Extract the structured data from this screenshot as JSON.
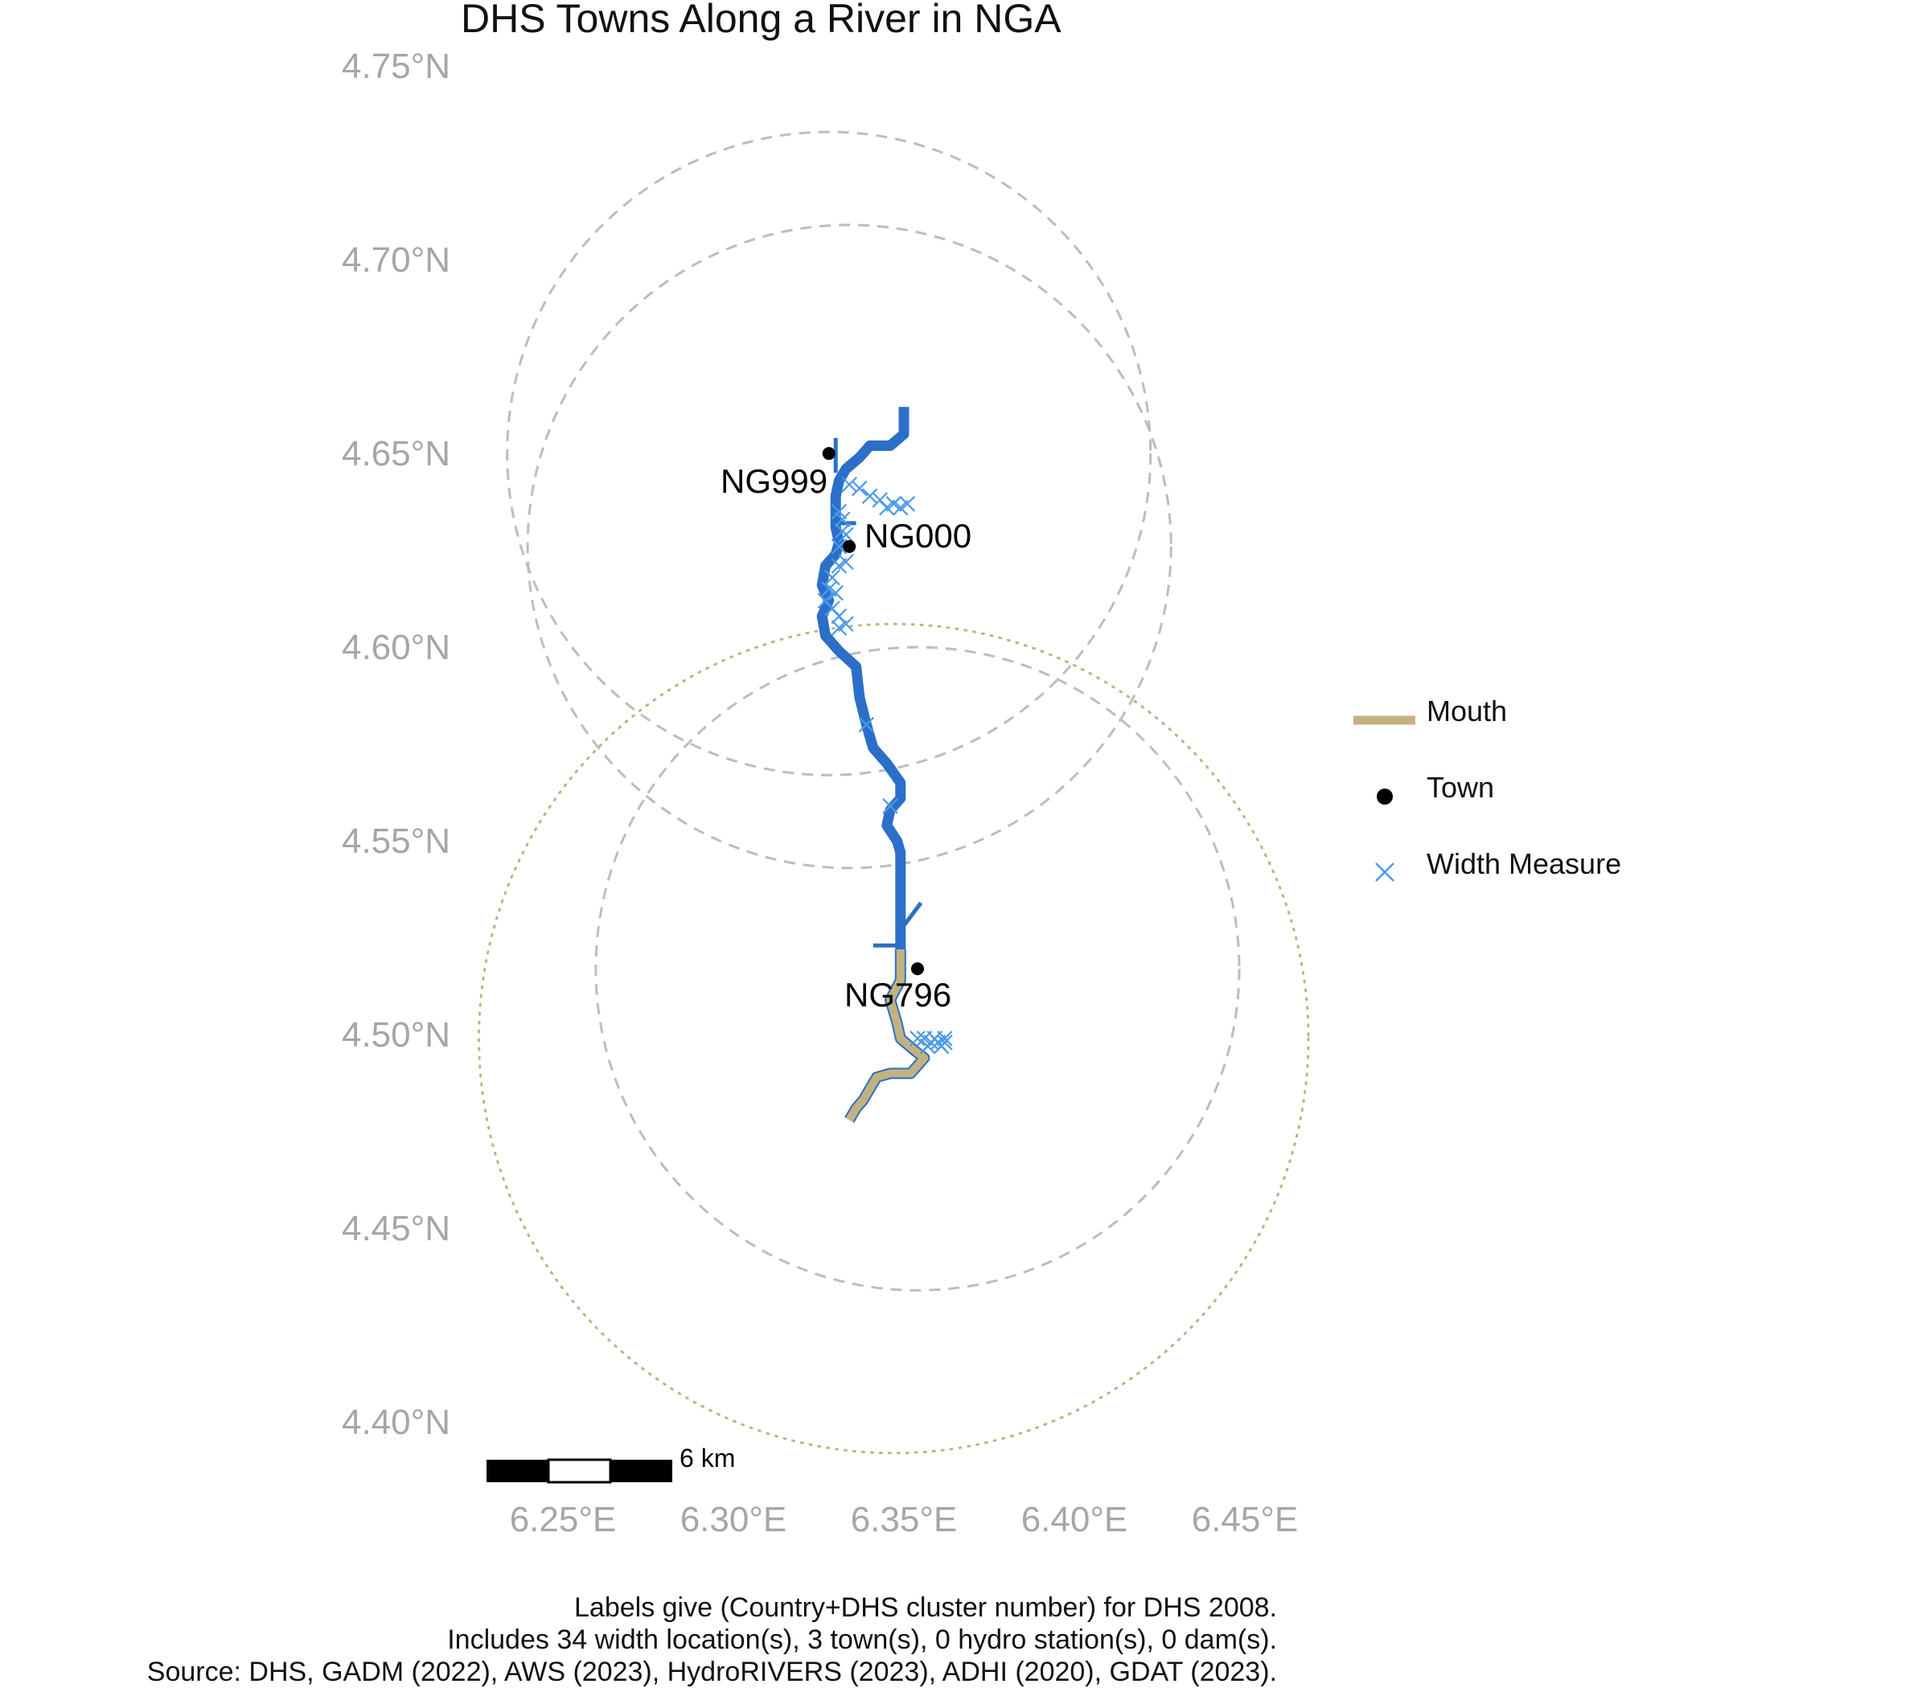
{
  "title": "DHS Towns Along a River in NGA",
  "y_ticks": [
    "4.75°N",
    "4.70°N",
    "4.65°N",
    "4.60°N",
    "4.55°N",
    "4.50°N",
    "4.45°N",
    "4.40°N"
  ],
  "x_ticks": [
    "6.25°E",
    "6.30°E",
    "6.35°E",
    "6.40°E",
    "6.45°E"
  ],
  "towns": [
    {
      "id": "NG999",
      "lon": 6.328,
      "lat": 4.651
    },
    {
      "id": "NG000",
      "lon": 6.334,
      "lat": 4.627
    },
    {
      "id": "NG796",
      "lon": 6.354,
      "lat": 4.518
    }
  ],
  "legend": {
    "mouth": "Mouth",
    "town": "Town",
    "width_measure": "Width Measure"
  },
  "scale_bar": {
    "label": "6 km"
  },
  "caption": {
    "line1": "Labels give (Country+DHS cluster number) for DHS 2008.",
    "line2": "Includes 34 width location(s), 3 town(s), 0 hydro station(s), 0 dam(s).",
    "line3": "Source: DHS, GADM (2022), AWS (2023), HydroRIVERS (2023), ADHI (2020), GDAT (2023)."
  },
  "colors": {
    "river": "#2b6fc8",
    "mouth": "#c2b280",
    "town": "#000000",
    "width_measure": "#4a9ae8",
    "buffer_dashed": "#bdbdbd",
    "buffer_dotted": "#c2b280",
    "axis_text": "#a6a6a6"
  },
  "map_data": {
    "lon_range": [
      6.22,
      6.47
    ],
    "lat_range": [
      4.39,
      4.76
    ],
    "river_main": [
      [
        6.35,
        4.663
      ],
      [
        6.35,
        4.656
      ],
      [
        6.346,
        4.653
      ],
      [
        6.34,
        4.653
      ],
      [
        6.337,
        4.65
      ],
      [
        6.333,
        4.647
      ],
      [
        6.331,
        4.644
      ],
      [
        6.33,
        4.64
      ],
      [
        6.33,
        4.632
      ],
      [
        6.331,
        4.628
      ],
      [
        6.33,
        4.625
      ],
      [
        6.327,
        4.622
      ],
      [
        6.326,
        4.617
      ],
      [
        6.328,
        4.613
      ],
      [
        6.326,
        4.609
      ],
      [
        6.327,
        4.604
      ],
      [
        6.331,
        4.6
      ],
      [
        6.336,
        4.596
      ],
      [
        6.337,
        4.588
      ],
      [
        6.339,
        4.581
      ],
      [
        6.341,
        4.575
      ],
      [
        6.345,
        4.571
      ],
      [
        6.349,
        4.566
      ],
      [
        6.349,
        4.562
      ],
      [
        6.346,
        4.559
      ],
      [
        6.345,
        4.555
      ],
      [
        6.348,
        4.551
      ],
      [
        6.349,
        4.548
      ],
      [
        6.349,
        4.54
      ],
      [
        6.349,
        4.53
      ],
      [
        6.349,
        4.523
      ]
    ],
    "tributaries": [
      [
        [
          6.33,
          4.655
        ],
        [
          6.33,
          4.646
        ]
      ],
      [
        [
          6.349,
          4.528
        ],
        [
          6.355,
          4.535
        ]
      ],
      [
        [
          6.341,
          4.524
        ],
        [
          6.349,
          4.524
        ]
      ],
      [
        [
          6.331,
          4.633
        ],
        [
          6.336,
          4.633
        ]
      ]
    ],
    "mouth": [
      [
        6.349,
        4.523
      ],
      [
        6.349,
        4.515
      ],
      [
        6.346,
        4.51
      ],
      [
        6.348,
        4.504
      ],
      [
        6.349,
        4.5
      ],
      [
        6.353,
        4.497
      ],
      [
        6.356,
        4.495
      ],
      [
        6.352,
        4.491
      ],
      [
        6.346,
        4.491
      ],
      [
        6.342,
        4.49
      ],
      [
        6.34,
        4.487
      ],
      [
        6.338,
        4.484
      ],
      [
        6.336,
        4.482
      ],
      [
        6.334,
        4.479
      ]
    ],
    "width_measures": [
      [
        6.334,
        4.643
      ],
      [
        6.337,
        4.642
      ],
      [
        6.34,
        4.64
      ],
      [
        6.343,
        4.639
      ],
      [
        6.345,
        4.637
      ],
      [
        6.347,
        4.638
      ],
      [
        6.349,
        4.637
      ],
      [
        6.351,
        4.638
      ],
      [
        6.331,
        4.636
      ],
      [
        6.332,
        4.631
      ],
      [
        6.333,
        4.63
      ],
      [
        6.331,
        4.627
      ],
      [
        6.333,
        4.623
      ],
      [
        6.331,
        4.622
      ],
      [
        6.329,
        4.619
      ],
      [
        6.328,
        4.616
      ],
      [
        6.327,
        4.613
      ],
      [
        6.329,
        4.611
      ],
      [
        6.331,
        4.609
      ],
      [
        6.331,
        4.606
      ],
      [
        6.339,
        4.581
      ],
      [
        6.346,
        4.56
      ],
      [
        6.332,
        4.634
      ],
      [
        6.33,
        4.615
      ],
      [
        6.333,
        4.607
      ],
      [
        6.354,
        4.5
      ],
      [
        6.356,
        4.5
      ],
      [
        6.357,
        4.498
      ],
      [
        6.358,
        4.499
      ],
      [
        6.359,
        4.5
      ],
      [
        6.36,
        4.499
      ],
      [
        6.361,
        4.498
      ],
      [
        6.362,
        4.499
      ],
      [
        6.362,
        4.5
      ]
    ],
    "buffers_dashed": [
      {
        "lon": 6.328,
        "lat": 4.651,
        "r_lat": 0.083
      },
      {
        "lon": 6.334,
        "lat": 4.627,
        "r_lat": 0.083
      },
      {
        "lon": 6.354,
        "lat": 4.518,
        "r_lat": 0.083
      }
    ],
    "buffers_dotted": [
      {
        "lon": 6.347,
        "lat": 4.5,
        "r_lat": 0.107
      }
    ]
  }
}
